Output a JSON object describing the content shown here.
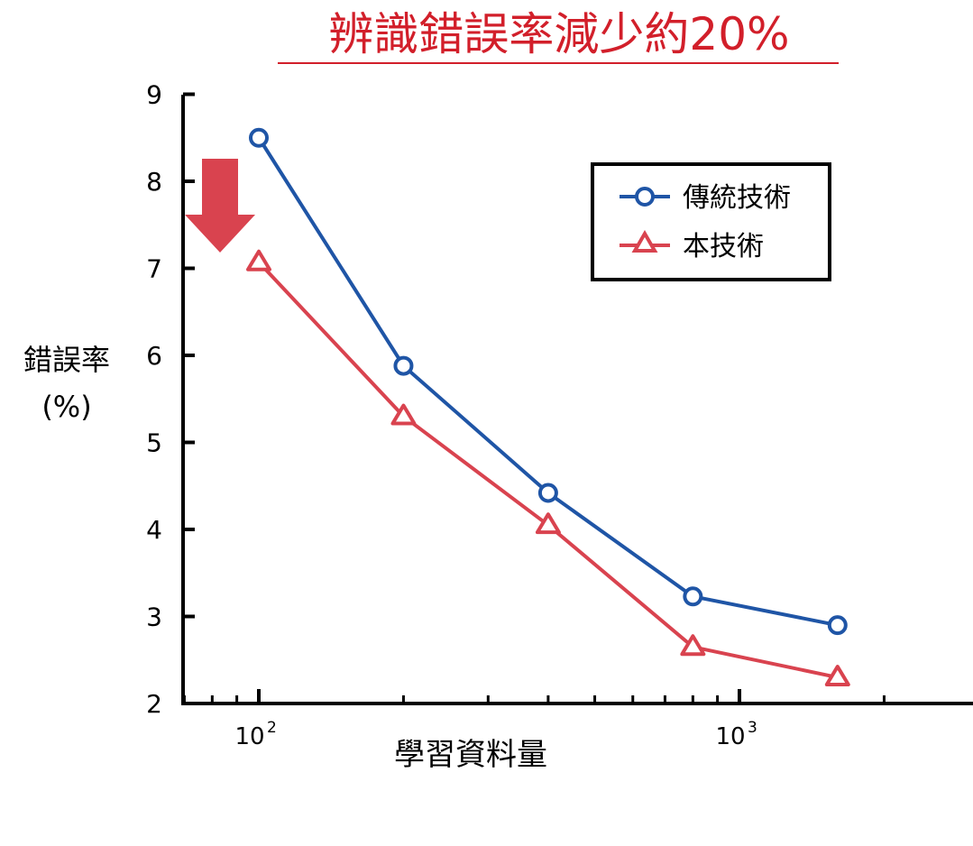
{
  "chart_data": {
    "type": "line",
    "title": "辨識錯誤率減少約20%",
    "ylabel": [
      "錯誤率",
      "(%)"
    ],
    "xlabel": "學習資料量",
    "x_scale": "log",
    "xlim": [
      66,
      2000
    ],
    "ylim": [
      2,
      9
    ],
    "yticks": [
      2,
      3,
      4,
      5,
      6,
      7,
      8,
      9
    ],
    "xtick_labels": [
      {
        "base": "10",
        "exp": "2",
        "value": 100
      },
      {
        "base": "10",
        "exp": "3",
        "value": 1000
      }
    ],
    "minor_xticks": [
      70,
      80,
      90,
      200,
      300,
      400,
      500,
      600,
      700,
      800,
      900,
      2000
    ],
    "x": [
      100,
      200,
      400,
      800,
      1600
    ],
    "series": [
      {
        "name": "傳統技術",
        "marker": "circle",
        "color": "#1f55a6",
        "values": [
          8.5,
          5.88,
          4.42,
          3.23,
          2.9
        ]
      },
      {
        "name": "本技術",
        "marker": "triangle",
        "color": "#d9434f",
        "values": [
          7.07,
          5.3,
          4.05,
          2.65,
          2.3
        ]
      }
    ],
    "legend_position": "top-right",
    "annotation": {
      "type": "down-arrow",
      "color": "#d9434f"
    },
    "colors": {
      "title": "#d21f2a",
      "axis": "#000000"
    }
  }
}
